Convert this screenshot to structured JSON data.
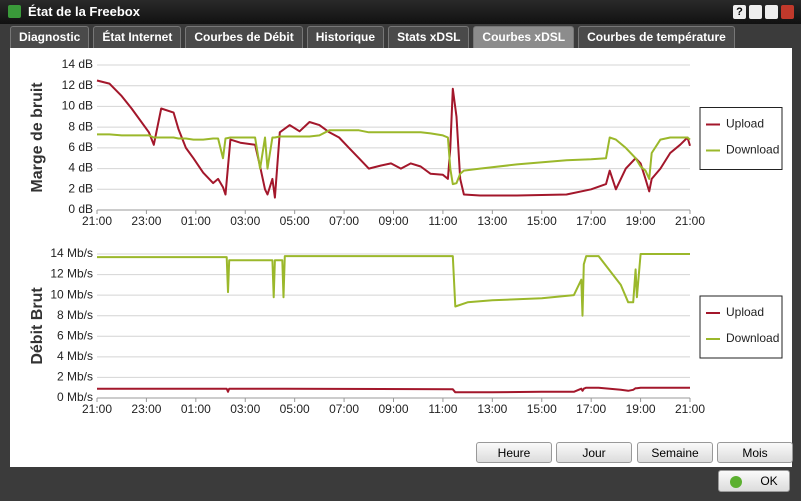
{
  "window": {
    "title": "État de la Freebox",
    "help": "?"
  },
  "tabs": [
    {
      "label": "Diagnostic",
      "active": false
    },
    {
      "label": "État Internet",
      "active": false
    },
    {
      "label": "Courbes de Débit",
      "active": false
    },
    {
      "label": "Historique",
      "active": false
    },
    {
      "label": "Stats xDSL",
      "active": false
    },
    {
      "label": "Courbes xDSL",
      "active": true
    },
    {
      "label": "Courbes de température",
      "active": false
    }
  ],
  "chart_data": [
    {
      "type": "line",
      "y_label": "Marge de bruit",
      "legend": "right",
      "grid": true,
      "x": [
        0,
        0.5,
        1.0,
        1.4,
        2.1,
        2.3,
        2.6,
        3.1,
        3.3,
        3.6,
        3.9,
        4.3,
        4.7,
        4.9,
        5.1,
        5.2,
        5.4,
        5.8,
        6.4,
        6.6,
        6.8,
        6.9,
        7.1,
        7.2,
        7.4,
        7.8,
        8.2,
        8.6,
        9.0,
        9.4,
        9.8,
        10.2,
        10.6,
        11.0,
        11.5,
        11.9,
        12.3,
        12.7,
        13.1,
        13.5,
        14.0,
        14.2,
        14.3,
        14.4,
        14.55,
        14.7,
        14.85,
        15.5,
        17.0,
        19.0,
        20.0,
        20.6,
        20.75,
        21.0,
        21.4,
        21.8,
        22.0,
        22.2,
        22.35,
        22.45,
        22.8,
        23.2,
        23.6,
        23.9,
        24.0
      ],
      "xlim": [
        0,
        24
      ],
      "xticks": [
        {
          "value": 0,
          "label": "21:00"
        },
        {
          "value": 2,
          "label": "23:00"
        },
        {
          "value": 4,
          "label": "01:00"
        },
        {
          "value": 6,
          "label": "03:00"
        },
        {
          "value": 8,
          "label": "05:00"
        },
        {
          "value": 10,
          "label": "07:00"
        },
        {
          "value": 12,
          "label": "09:00"
        },
        {
          "value": 14,
          "label": "11:00"
        },
        {
          "value": 16,
          "label": "13:00"
        },
        {
          "value": 18,
          "label": "15:00"
        },
        {
          "value": 20,
          "label": "17:00"
        },
        {
          "value": 22,
          "label": "19:00"
        },
        {
          "value": 24,
          "label": "21:00"
        }
      ],
      "ylim": [
        0,
        14
      ],
      "yticks": [
        {
          "value": 0,
          "label": "0 dB"
        },
        {
          "value": 2,
          "label": "2 dB"
        },
        {
          "value": 4,
          "label": "4 dB"
        },
        {
          "value": 6,
          "label": "6 dB"
        },
        {
          "value": 8,
          "label": "8 dB"
        },
        {
          "value": 10,
          "label": "10 dB"
        },
        {
          "value": 12,
          "label": "12 dB"
        },
        {
          "value": 14,
          "label": "14 dB"
        }
      ],
      "series": [
        {
          "name": "Upload",
          "color": "#a3172b",
          "values": [
            12.5,
            12.2,
            11.0,
            9.8,
            7.5,
            6.3,
            9.8,
            9.4,
            7.8,
            6.0,
            5.0,
            3.6,
            2.6,
            3.0,
            2.2,
            1.5,
            6.8,
            6.5,
            6.3,
            4.2,
            2.0,
            1.5,
            3.0,
            1.2,
            7.5,
            8.2,
            7.6,
            8.5,
            8.2,
            7.5,
            7.0,
            6.0,
            5.0,
            4.0,
            4.3,
            4.5,
            4.0,
            4.5,
            4.2,
            3.5,
            3.4,
            3.0,
            6.0,
            11.7,
            9.0,
            3.0,
            1.5,
            1.4,
            1.4,
            1.5,
            2.0,
            2.5,
            3.8,
            2.0,
            4.0,
            5.0,
            4.5,
            3.0,
            1.8,
            3.0,
            4.0,
            5.5,
            6.3,
            7.0,
            6.2
          ]
        },
        {
          "name": "Download",
          "color": "#9bb82b",
          "values": [
            7.3,
            7.3,
            7.2,
            7.2,
            7.2,
            7.0,
            7.0,
            7.0,
            6.9,
            6.9,
            6.8,
            6.8,
            6.9,
            6.9,
            5.0,
            6.9,
            7.0,
            7.0,
            7.0,
            4.0,
            7.0,
            4.0,
            7.0,
            7.0,
            7.1,
            7.1,
            7.1,
            7.1,
            7.2,
            7.7,
            7.7,
            7.7,
            7.7,
            7.5,
            7.5,
            7.5,
            7.5,
            7.5,
            7.5,
            7.4,
            7.2,
            7.0,
            4.0,
            2.5,
            2.6,
            3.5,
            3.8,
            4.0,
            4.4,
            4.8,
            4.9,
            5.0,
            7.0,
            6.8,
            6.0,
            5.0,
            4.2,
            3.8,
            3.0,
            5.5,
            6.8,
            7.0,
            7.0,
            7.0,
            6.8
          ]
        }
      ]
    },
    {
      "type": "line",
      "y_label": "Débit Brut",
      "legend": "right",
      "grid": true,
      "x": [
        0,
        5.25,
        5.3,
        5.35,
        7.1,
        7.15,
        7.2,
        7.5,
        7.55,
        7.6,
        14.4,
        14.5,
        15,
        16,
        18,
        19.3,
        19.6,
        19.65,
        19.7,
        19.8,
        20.3,
        21.2,
        21.5,
        21.7,
        21.8,
        21.85,
        22,
        24
      ],
      "xlim": [
        0,
        24
      ],
      "xticks": [
        {
          "value": 0,
          "label": "21:00"
        },
        {
          "value": 2,
          "label": "23:00"
        },
        {
          "value": 4,
          "label": "01:00"
        },
        {
          "value": 6,
          "label": "03:00"
        },
        {
          "value": 8,
          "label": "05:00"
        },
        {
          "value": 10,
          "label": "07:00"
        },
        {
          "value": 12,
          "label": "09:00"
        },
        {
          "value": 14,
          "label": "11:00"
        },
        {
          "value": 16,
          "label": "13:00"
        },
        {
          "value": 18,
          "label": "15:00"
        },
        {
          "value": 20,
          "label": "17:00"
        },
        {
          "value": 22,
          "label": "19:00"
        },
        {
          "value": 24,
          "label": "21:00"
        }
      ],
      "ylim": [
        0,
        14
      ],
      "yticks": [
        {
          "value": 0,
          "label": "0 Mb/s"
        },
        {
          "value": 2,
          "label": "2 Mb/s"
        },
        {
          "value": 4,
          "label": "4 Mb/s"
        },
        {
          "value": 6,
          "label": "6 Mb/s"
        },
        {
          "value": 8,
          "label": "8 Mb/s"
        },
        {
          "value": 10,
          "label": "10 Mb/s"
        },
        {
          "value": 12,
          "label": "12 Mb/s"
        },
        {
          "value": 14,
          "label": "14 Mb/s"
        }
      ],
      "series": [
        {
          "name": "Upload",
          "color": "#a3172b",
          "values": [
            0.9,
            0.9,
            0.6,
            0.9,
            0.9,
            0.9,
            0.9,
            0.9,
            0.9,
            0.9,
            0.85,
            0.55,
            0.55,
            0.55,
            0.6,
            0.6,
            0.9,
            0.7,
            0.9,
            1.0,
            1.0,
            0.8,
            0.7,
            0.8,
            0.95,
            0.95,
            1.0,
            1.0
          ]
        },
        {
          "name": "Download",
          "color": "#9bb82b",
          "values": [
            13.7,
            13.7,
            10.3,
            13.4,
            13.4,
            9.8,
            13.4,
            13.4,
            9.8,
            13.8,
            13.8,
            8.9,
            9.3,
            9.5,
            9.7,
            10.0,
            11.5,
            8.0,
            13.0,
            13.8,
            13.8,
            11.0,
            9.3,
            9.3,
            12.5,
            9.8,
            14.0,
            14.0
          ]
        }
      ]
    }
  ],
  "buttons": [
    "Heure",
    "Jour",
    "Semaine",
    "Mois"
  ],
  "ok_button": "OK"
}
